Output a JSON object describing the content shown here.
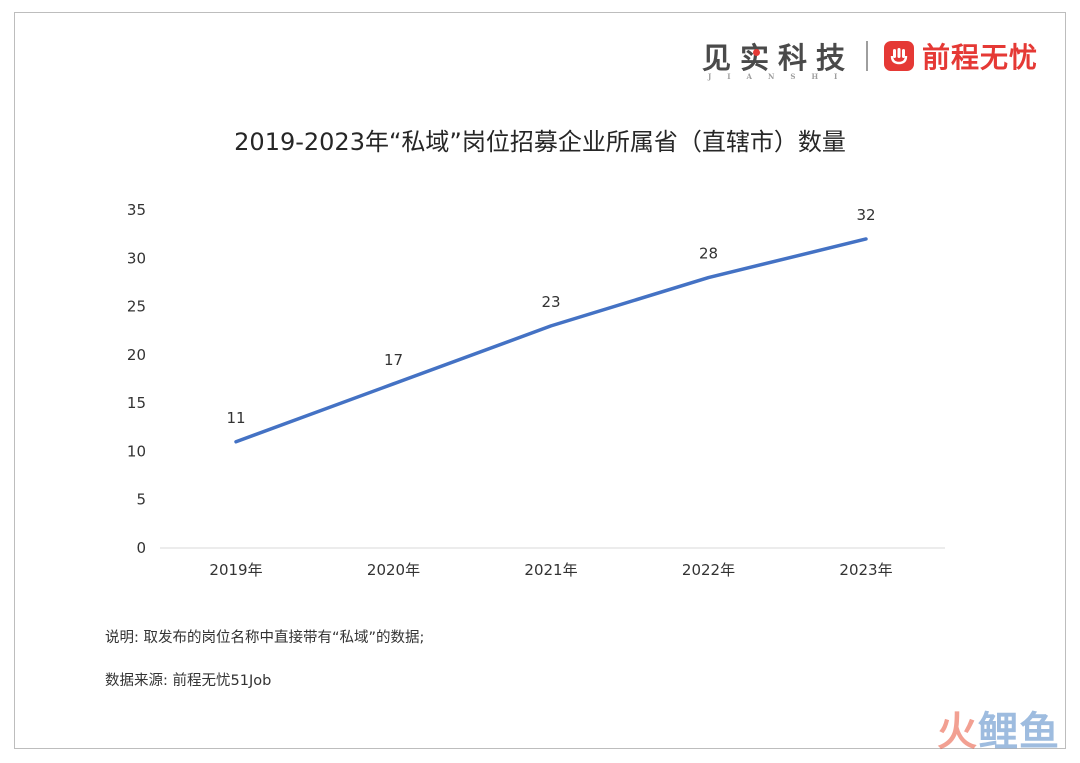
{
  "brand": {
    "left_name": "见实科技",
    "left_pinyin": "JIANSHI",
    "right_name": "前程无忧",
    "colors": {
      "red": "#e53935",
      "gray": "#4a4a4a"
    }
  },
  "chart_data": {
    "type": "line",
    "title": "2019-2023年“私域”岗位招募企业所属省（直辖市）数量",
    "categories": [
      "2019年",
      "2020年",
      "2021年",
      "2022年",
      "2023年"
    ],
    "values": [
      11,
      17,
      23,
      28,
      32
    ],
    "data_labels": [
      "11",
      "17",
      "23",
      "28",
      "32"
    ],
    "yticks": [
      "0",
      "5",
      "10",
      "15",
      "20",
      "25",
      "30",
      "35"
    ],
    "ylim": [
      0,
      35
    ],
    "grid": false,
    "line_color": "#4472c4"
  },
  "notes": {
    "explanation": "说明: 取发布的岗位名称中直接带有“私域”的数据;",
    "source": "数据来源: 前程无忧51Job"
  },
  "watermark": {
    "part1": "火",
    "part2": "鲤鱼"
  }
}
